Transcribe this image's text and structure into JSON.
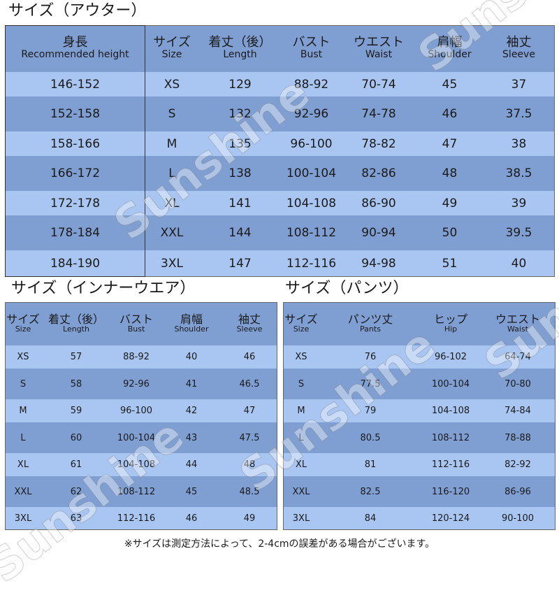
{
  "outer": {
    "title": "サイズ（アウター）",
    "height_header": {
      "jp": "身長",
      "en": "Recommended height"
    },
    "headers": [
      {
        "jp": "サイズ",
        "en": "Size"
      },
      {
        "jp": "着丈（後）",
        "en": "Length"
      },
      {
        "jp": "バスト",
        "en": "Bust"
      },
      {
        "jp": "ウエスト",
        "en": "Waist"
      },
      {
        "jp": "肩幅",
        "en": "Shoulder"
      },
      {
        "jp": "袖丈",
        "en": "Sleeve"
      }
    ],
    "rows": [
      {
        "height": "146-152",
        "size": "XS",
        "length": "129",
        "bust": "88-92",
        "waist": "70-74",
        "shoulder": "45",
        "sleeve": "37"
      },
      {
        "height": "152-158",
        "size": "S",
        "length": "132",
        "bust": "92-96",
        "waist": "74-78",
        "shoulder": "46",
        "sleeve": "37.5"
      },
      {
        "height": "158-166",
        "size": "M",
        "length": "135",
        "bust": "96-100",
        "waist": "78-82",
        "shoulder": "47",
        "sleeve": "38"
      },
      {
        "height": "166-172",
        "size": "L",
        "length": "138",
        "bust": "100-104",
        "waist": "82-86",
        "shoulder": "48",
        "sleeve": "38.5"
      },
      {
        "height": "172-178",
        "size": "XL",
        "length": "141",
        "bust": "104-108",
        "waist": "86-90",
        "shoulder": "49",
        "sleeve": "39"
      },
      {
        "height": "178-184",
        "size": "XXL",
        "length": "144",
        "bust": "108-112",
        "waist": "90-94",
        "shoulder": "50",
        "sleeve": "39.5"
      },
      {
        "height": "184-190",
        "size": "3XL",
        "length": "147",
        "bust": "112-116",
        "waist": "94-98",
        "shoulder": "51",
        "sleeve": "40"
      }
    ]
  },
  "inner": {
    "title": "サイズ（インナーウエア）",
    "headers": [
      {
        "jp": "サイズ",
        "en": "Size"
      },
      {
        "jp": "着丈（後）",
        "en": "Length"
      },
      {
        "jp": "バスト",
        "en": "Bust"
      },
      {
        "jp": "肩幅",
        "en": "Shoulder"
      },
      {
        "jp": "袖丈",
        "en": "Sleeve"
      }
    ],
    "rows": [
      {
        "size": "XS",
        "length": "57",
        "bust": "88-92",
        "shoulder": "40",
        "sleeve": "46"
      },
      {
        "size": "S",
        "length": "58",
        "bust": "92-96",
        "shoulder": "41",
        "sleeve": "46.5"
      },
      {
        "size": "M",
        "length": "59",
        "bust": "96-100",
        "shoulder": "42",
        "sleeve": "47"
      },
      {
        "size": "L",
        "length": "60",
        "bust": "100-104",
        "shoulder": "43",
        "sleeve": "47.5"
      },
      {
        "size": "XL",
        "length": "61",
        "bust": "104-108",
        "shoulder": "44",
        "sleeve": "48"
      },
      {
        "size": "XXL",
        "length": "62",
        "bust": "108-112",
        "shoulder": "45",
        "sleeve": "48.5"
      },
      {
        "size": "3XL",
        "length": "63",
        "bust": "112-116",
        "shoulder": "46",
        "sleeve": "49"
      }
    ]
  },
  "pants": {
    "title": "サイズ（パンツ）",
    "headers": [
      {
        "jp": "サイズ",
        "en": "Size"
      },
      {
        "jp": "パンツ丈",
        "en": "Pants"
      },
      {
        "jp": "ヒップ",
        "en": "Hip"
      },
      {
        "jp": "ウエスト",
        "en": "Waist"
      }
    ],
    "rows": [
      {
        "size": "XS",
        "pants": "76",
        "hip": "96-102",
        "waist": "64-74"
      },
      {
        "size": "S",
        "pants": "77.5",
        "hip": "100-104",
        "waist": "70-80"
      },
      {
        "size": "M",
        "pants": "79",
        "hip": "104-108",
        "waist": "74-84"
      },
      {
        "size": "L",
        "pants": "80.5",
        "hip": "108-112",
        "waist": "78-88"
      },
      {
        "size": "XL",
        "pants": "81",
        "hip": "112-116",
        "waist": "82-92"
      },
      {
        "size": "XXL",
        "pants": "82.5",
        "hip": "116-120",
        "waist": "86-96"
      },
      {
        "size": "3XL",
        "pants": "84",
        "hip": "120-124",
        "waist": "90-100"
      }
    ]
  },
  "watermark": "Sunshine",
  "note": "※サイズは測定方法によって、2-4cmの誤差がある場合がございます。",
  "colors": {
    "header": "#7f9fd3",
    "row_light": "#a9c6f2",
    "row_dark": "#7f9fd3"
  }
}
